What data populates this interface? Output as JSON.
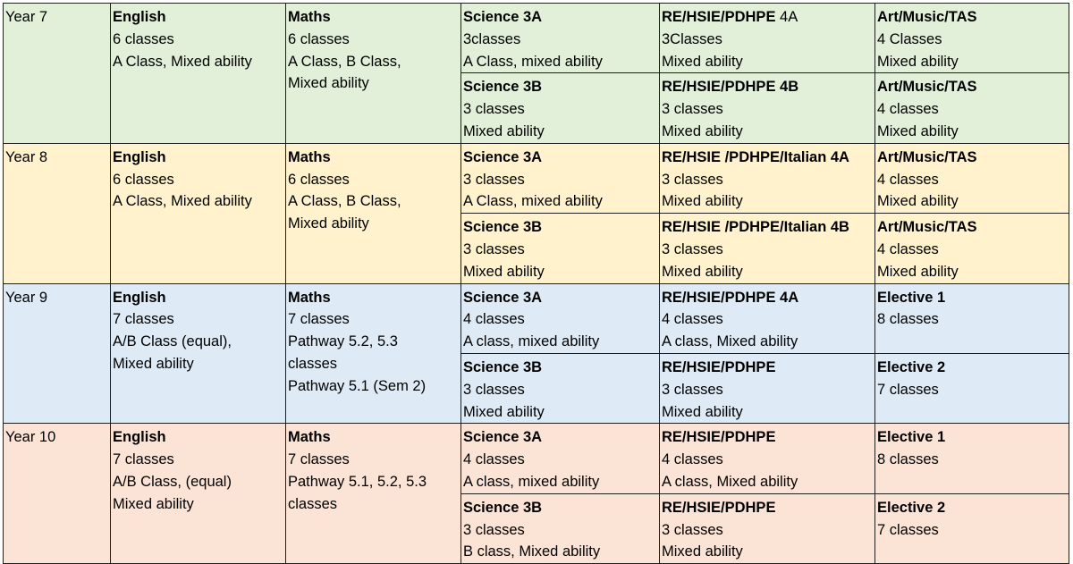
{
  "rows": [
    {
      "year": "Year 7",
      "english": {
        "title": "English",
        "lines": [
          "6 classes",
          "A Class, Mixed ability"
        ]
      },
      "maths": {
        "title": "Maths",
        "lines": [
          "6 classes",
          "A Class, B Class,",
          "Mixed ability"
        ]
      },
      "science_a": {
        "title": "Science 3A",
        "lines": [
          "3classes",
          "A Class, mixed ability"
        ]
      },
      "science_b": {
        "title": "Science 3B",
        "lines": [
          "3 classes",
          "Mixed ability"
        ]
      },
      "re_a": {
        "title": "RE/HSIE/PDHPE",
        "title_suffix": " 4A",
        "lines": [
          "3Classes",
          "Mixed ability"
        ]
      },
      "re_b": {
        "title": "RE/HSIE/PDHPE 4B",
        "lines": [
          "3 classes",
          "Mixed ability"
        ]
      },
      "elective_a": {
        "title": "Art/Music/TAS",
        "lines": [
          "4 Classes",
          "Mixed ability"
        ]
      },
      "elective_b": {
        "title": "Art/Music/TAS",
        "lines": [
          "4 classes",
          "Mixed ability"
        ]
      }
    },
    {
      "year": "Year 8",
      "english": {
        "title": "English",
        "lines": [
          "6 classes",
          "A Class, Mixed ability"
        ]
      },
      "maths": {
        "title": "Maths",
        "lines": [
          "6 classes",
          "A Class, B Class,",
          "Mixed ability"
        ]
      },
      "science_a": {
        "title": "Science 3A",
        "lines": [
          "3 classes",
          "A Class, mixed ability"
        ]
      },
      "science_b": {
        "title": "Science 3B",
        "lines": [
          "3 classes",
          "Mixed ability"
        ]
      },
      "re_a": {
        "title": "RE/HSIE /PDHPE/Italian 4A",
        "lines": [
          "3 classes",
          "Mixed ability"
        ]
      },
      "re_b": {
        "title": "RE/HSIE /PDHPE/Italian 4B",
        "lines": [
          "3 classes",
          "Mixed ability"
        ]
      },
      "elective_a": {
        "title": "Art/Music/TAS",
        "lines": [
          "4 classes",
          "Mixed ability"
        ]
      },
      "elective_b": {
        "title": "Art/Music/TAS",
        "lines": [
          "4 classes",
          "Mixed ability"
        ]
      }
    },
    {
      "year": "Year 9",
      "english": {
        "title": "English",
        "lines": [
          "7 classes",
          "A/B Class (equal),",
          "Mixed ability"
        ]
      },
      "maths": {
        "title": "Maths",
        "lines": [
          "7 classes",
          "Pathway 5.2, 5.3",
          "classes",
          "Pathway 5.1 (Sem 2)"
        ]
      },
      "science_a": {
        "title": "Science 3A",
        "lines": [
          "4 classes",
          "A class, mixed ability"
        ]
      },
      "science_b": {
        "title": "Science 3B",
        "lines": [
          "3 classes",
          "Mixed ability"
        ]
      },
      "re_a": {
        "title": "RE/HSIE/PDHPE 4A",
        "lines": [
          "4 classes",
          "A class, Mixed ability"
        ]
      },
      "re_b": {
        "title": "RE/HSIE/PDHPE",
        "lines": [
          "3 classes",
          "Mixed ability"
        ]
      },
      "elective_a": {
        "title": "Elective 1",
        "lines": [
          "8 classes"
        ]
      },
      "elective_b": {
        "title": "Elective 2",
        "lines": [
          "7 classes"
        ]
      }
    },
    {
      "year": "Year 10",
      "english": {
        "title": "English",
        "lines": [
          "7 classes",
          "A/B Class, (equal)",
          "Mixed ability"
        ]
      },
      "maths": {
        "title": "Maths",
        "lines": [
          "7 classes",
          "Pathway 5.1, 5.2, 5.3",
          "classes"
        ]
      },
      "science_a": {
        "title": "Science 3A",
        "lines": [
          "4 classes",
          "A class, mixed ability"
        ]
      },
      "science_b": {
        "title": "Science 3B",
        "lines": [
          "3 classes",
          "B class, Mixed ability"
        ]
      },
      "re_a": {
        "title": "RE/HSIE/PDHPE",
        "lines": [
          "4 classes",
          "A class, Mixed ability"
        ]
      },
      "re_b": {
        "title": "RE/HSIE/PDHPE",
        "lines": [
          "3 classes",
          "Mixed ability"
        ]
      },
      "elective_a": {
        "title": "Elective 1",
        "lines": [
          "8 classes"
        ]
      },
      "elective_b": {
        "title": "Elective 2",
        "lines": [
          "7 classes"
        ]
      }
    }
  ]
}
